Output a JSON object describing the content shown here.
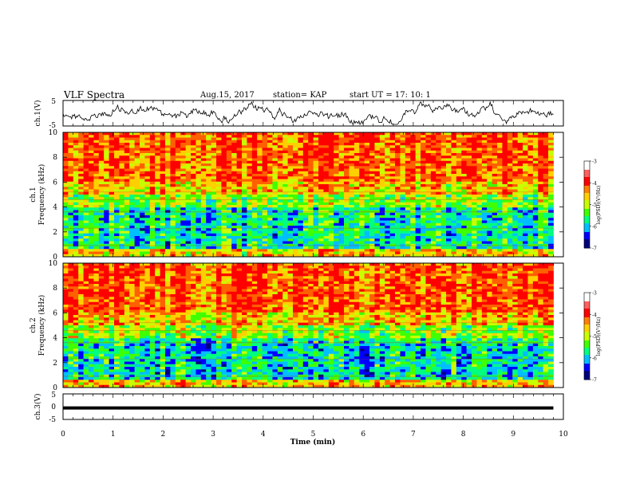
{
  "header": {
    "title": "VLF Spectra",
    "date": "Aug.15, 2017",
    "station": "station= KAP",
    "start": "start  UT =   17: 10: 1"
  },
  "chart_data": [
    {
      "type": "line",
      "panel": "ch.1 waveform",
      "ylabel": "ch.1(V)",
      "ylim": [
        -5,
        5
      ],
      "yticks": [
        "5",
        "-5"
      ],
      "xlim": [
        0,
        10
      ],
      "series": [
        {
          "values_description_free": true,
          "color": "#000000"
        }
      ]
    },
    {
      "type": "heatmap",
      "panel": "ch.1 spectrogram",
      "ylabel": "ch.1\nFrequency (kHz)",
      "ylabel_line1": "ch.1",
      "ylabel_line2": "Frequency (kHz)",
      "ylim": [
        0,
        10
      ],
      "yticks": [
        "0",
        "2",
        "4",
        "6",
        "8",
        "10"
      ],
      "xlim": [
        0,
        10
      ],
      "data_extent_min": 9.8,
      "colorbar": {
        "label": "log(PSD)(V²/Hz)",
        "range": [
          -7,
          -3
        ],
        "ticks": [
          "-3",
          "-4",
          "-5",
          "-6",
          "-7"
        ]
      }
    },
    {
      "type": "heatmap",
      "panel": "ch.2 spectrogram",
      "ylabel_line1": "ch.2",
      "ylabel_line2": "Frequency (kHz)",
      "ylim": [
        0,
        10
      ],
      "yticks": [
        "0",
        "2",
        "4",
        "6",
        "8",
        "10"
      ],
      "xlim": [
        0,
        10
      ],
      "data_extent_min": 9.8,
      "colorbar": {
        "label": "log(PSD)(V²/Hz)",
        "range": [
          -7,
          -3
        ],
        "ticks": [
          "-3",
          "-4",
          "-5",
          "-6",
          "-7"
        ]
      }
    },
    {
      "type": "line",
      "panel": "ch.3 waveform",
      "ylabel": "ch.3(V)",
      "ylim": [
        -5,
        5
      ],
      "yticks": [
        "5",
        "0",
        "-5"
      ],
      "xlim": [
        0,
        10
      ],
      "series": [
        {
          "value": -0.5,
          "color": "#000000"
        }
      ]
    }
  ],
  "xaxis": {
    "label": "Time (min)",
    "ticks": [
      "0",
      "1",
      "2",
      "3",
      "4",
      "5",
      "6",
      "7",
      "8",
      "9",
      "10"
    ]
  },
  "colors": {
    "colormap": [
      "#00007f",
      "#0000ff",
      "#00bfff",
      "#00ff80",
      "#40ff00",
      "#c8ff00",
      "#ffd000",
      "#ff6000",
      "#ff0000",
      "#ffffff"
    ]
  }
}
